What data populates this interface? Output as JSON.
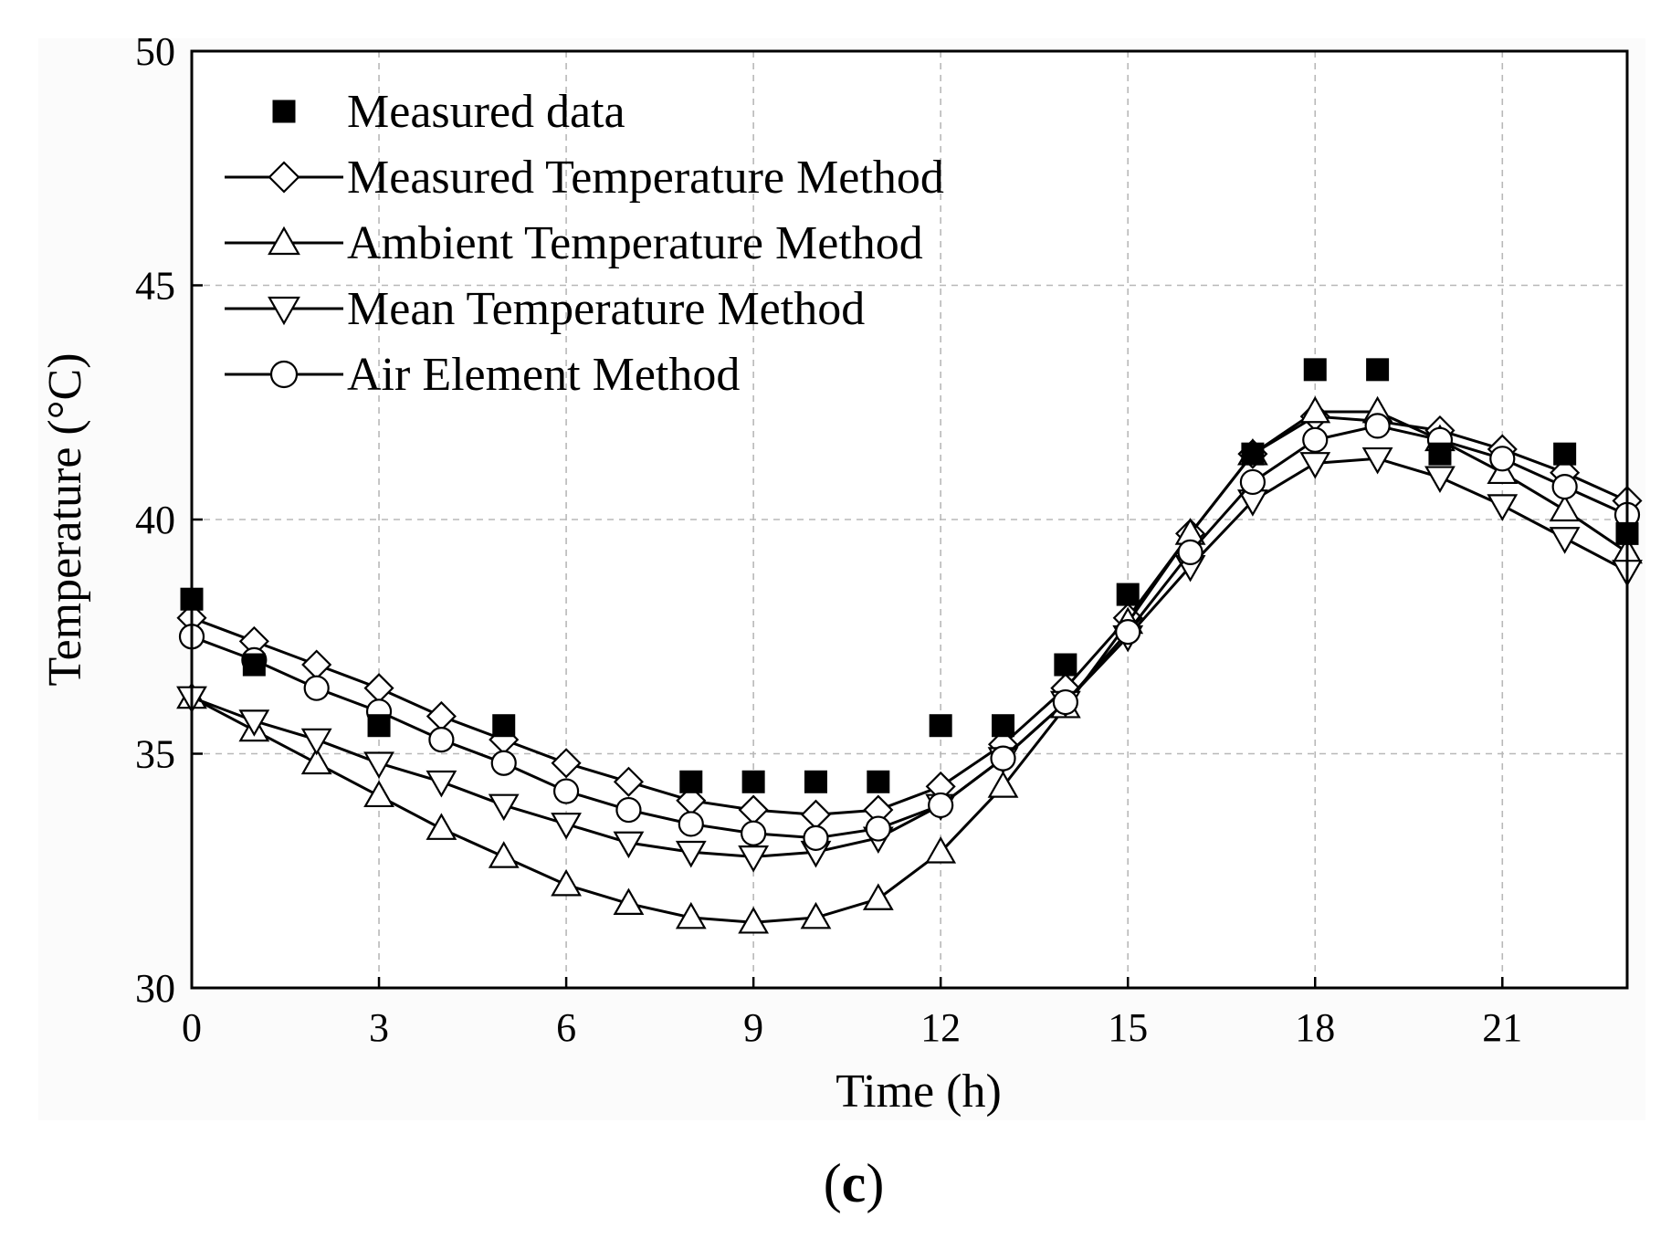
{
  "caption": {
    "open": "(",
    "letter": "c",
    "close": ")"
  },
  "chart_data": {
    "type": "line",
    "title": "",
    "xlabel": "Time (h)",
    "ylabel": "Temperature (°C)",
    "xlim": [
      0,
      23
    ],
    "ylim": [
      30,
      50
    ],
    "xticks": [
      0,
      3,
      6,
      9,
      12,
      15,
      18,
      21
    ],
    "xtick_labels": [
      "0",
      "3",
      "6",
      "9",
      "12",
      "15",
      "18",
      "21"
    ],
    "yticks": [
      30,
      35,
      40,
      45,
      50
    ],
    "ytick_labels": [
      "30",
      "35",
      "40",
      "45",
      "50"
    ],
    "grid": true,
    "legend_position": "top-left",
    "measured": {
      "name": "Measured data",
      "marker": "square",
      "x": [
        0,
        1,
        3,
        5,
        8,
        9,
        10,
        11,
        12,
        13,
        14,
        15,
        17,
        18,
        19,
        20,
        22,
        23
      ],
      "y": [
        38.3,
        36.9,
        35.6,
        35.6,
        34.4,
        34.4,
        34.4,
        34.4,
        35.6,
        35.6,
        36.9,
        38.4,
        41.4,
        43.2,
        43.2,
        41.4,
        41.4,
        39.7
      ]
    },
    "x": [
      0,
      1,
      2,
      3,
      4,
      5,
      6,
      7,
      8,
      9,
      10,
      11,
      12,
      13,
      14,
      15,
      16,
      17,
      18,
      19,
      20,
      21,
      22,
      23
    ],
    "series": [
      {
        "name": "Measured Temperature Method",
        "marker": "diamond",
        "values": [
          37.9,
          37.4,
          36.9,
          36.4,
          35.8,
          35.3,
          34.8,
          34.4,
          34.0,
          33.8,
          33.7,
          33.8,
          34.3,
          35.2,
          36.4,
          37.9,
          39.7,
          41.4,
          42.2,
          42.1,
          41.9,
          41.5,
          41.0,
          40.4
        ]
      },
      {
        "name": "Ambient Temperature Method",
        "marker": "triangle-up",
        "values": [
          36.2,
          35.5,
          34.8,
          34.1,
          33.4,
          32.8,
          32.2,
          31.8,
          31.5,
          31.4,
          31.5,
          31.9,
          32.9,
          34.3,
          36.0,
          37.8,
          39.7,
          41.4,
          42.3,
          42.3,
          41.7,
          41.0,
          40.2,
          39.3
        ]
      },
      {
        "name": "Mean Temperature Method",
        "marker": "triangle-down",
        "values": [
          36.2,
          35.7,
          35.3,
          34.8,
          34.4,
          33.9,
          33.5,
          33.1,
          32.9,
          32.8,
          32.9,
          33.2,
          33.9,
          34.9,
          36.1,
          37.5,
          39.0,
          40.4,
          41.2,
          41.3,
          40.9,
          40.3,
          39.6,
          38.9
        ]
      },
      {
        "name": "Air Element Method",
        "marker": "circle",
        "values": [
          37.5,
          37.0,
          36.4,
          35.9,
          35.3,
          34.8,
          34.2,
          33.8,
          33.5,
          33.3,
          33.2,
          33.4,
          33.9,
          34.9,
          36.1,
          37.6,
          39.3,
          40.8,
          41.7,
          42.0,
          41.7,
          41.3,
          40.7,
          40.1
        ]
      }
    ]
  }
}
